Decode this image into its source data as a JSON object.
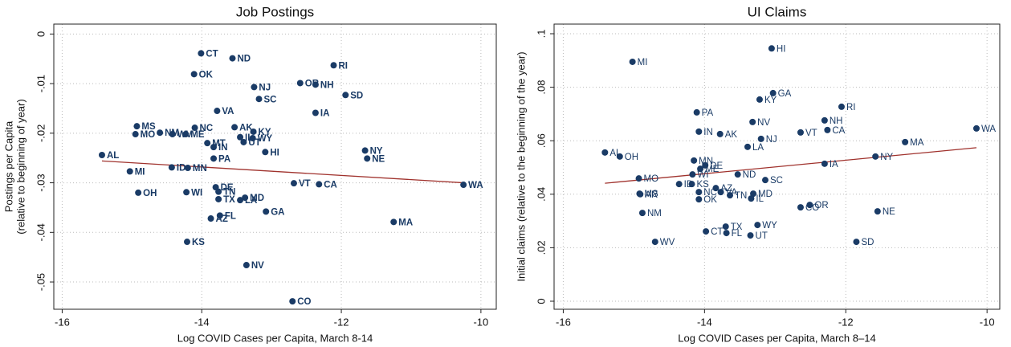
{
  "chart_data": [
    {
      "type": "scatter",
      "title": "Job Postings",
      "xlabel": "Log COVID Cases per Capita, March 8-14",
      "ylabel": [
        "Postings per Capita",
        "(relative to beginning of year)"
      ],
      "color": "#1a3b66",
      "grid": true,
      "xlim": [
        -16.12,
        -9.78
      ],
      "ylim": [
        -0.0555,
        0.002
      ],
      "xticks": [
        -16,
        -14,
        -12,
        -10
      ],
      "yticks": [
        0,
        {
          "value": -0.01,
          "label": "-.01"
        },
        {
          "value": -0.02,
          "label": "-.02"
        },
        {
          "value": -0.03,
          "label": "-.03"
        },
        {
          "value": -0.04,
          "label": "-.04"
        },
        {
          "value": -0.05,
          "label": "-.05"
        }
      ],
      "labels": [
        "CT",
        "ND",
        "RI",
        "OK",
        "NJ",
        "OR",
        "NH",
        "SD",
        "SC",
        "VA",
        "IA",
        "MS",
        "NC",
        "AK",
        "MO",
        "NM",
        "WV",
        "ME",
        "KY",
        "IL",
        "WY",
        "UT",
        "MT",
        "IN",
        "HI",
        "NY",
        "AL",
        "PA",
        "NE",
        "MI",
        "ID",
        "MN",
        "WA",
        "VT",
        "CA",
        "DE",
        "OH",
        "WI",
        "TN",
        "MD",
        "LA",
        "TX",
        "FL",
        "AZ",
        "GA",
        "MA",
        "KS",
        "NV",
        "CO"
      ],
      "x": [
        -14.01,
        -13.56,
        -12.11,
        -14.11,
        -13.25,
        -12.59,
        -12.37,
        -11.94,
        -13.18,
        -13.78,
        -12.37,
        -14.93,
        -14.1,
        -13.53,
        -14.95,
        -14.6,
        -14.42,
        -14.23,
        -13.26,
        -13.45,
        -13.27,
        -13.4,
        -13.92,
        -13.83,
        -13.09,
        -11.66,
        -15.43,
        -13.83,
        -11.63,
        -15.03,
        -14.43,
        -14.2,
        -10.25,
        -12.68,
        -12.32,
        -13.8,
        -14.91,
        -14.22,
        -13.76,
        -13.38,
        -13.45,
        -13.76,
        -13.74,
        -13.87,
        -13.08,
        -11.25,
        -14.21,
        -13.36,
        -12.7
      ],
      "values": [
        -0.0039,
        -0.0049,
        -0.0063,
        -0.0081,
        -0.0107,
        -0.0099,
        -0.0102,
        -0.0123,
        -0.0131,
        -0.0155,
        -0.0159,
        -0.0186,
        -0.0189,
        -0.0188,
        -0.0202,
        -0.0199,
        -0.0202,
        -0.0202,
        -0.0197,
        -0.0208,
        -0.021,
        -0.0218,
        -0.022,
        -0.0228,
        -0.0238,
        -0.0235,
        -0.0244,
        -0.0251,
        -0.0251,
        -0.0277,
        -0.0269,
        -0.027,
        -0.0304,
        -0.0301,
        -0.0303,
        -0.0309,
        -0.032,
        -0.0319,
        -0.0318,
        -0.033,
        -0.0335,
        -0.0333,
        -0.0366,
        -0.0372,
        -0.0358,
        -0.0379,
        -0.0419,
        -0.0466,
        -0.0539
      ],
      "fit": {
        "color": "#a0322d",
        "x": [
          -15.43,
          -10.25
        ],
        "values": [
          -0.0256,
          -0.03
        ]
      }
    },
    {
      "type": "scatter",
      "title": "UI Claims",
      "xlabel": "Log COVID Cases per Capita, March 8–14",
      "ylabel": [
        "Initial claims (relative to the beginning of the year)"
      ],
      "color": "#1a3b66",
      "grid": true,
      "xlim": [
        -16.13,
        -9.82
      ],
      "ylim": [
        -0.003,
        0.1036
      ],
      "xticks": [
        -16,
        -14,
        -12,
        -10
      ],
      "yticks": [
        0,
        {
          "value": 0.02,
          "label": ".02"
        },
        {
          "value": 0.04,
          "label": ".04"
        },
        {
          "value": 0.06,
          "label": ".06"
        },
        {
          "value": 0.08,
          "label": ".08"
        },
        {
          "value": 0.1,
          "label": ".1"
        }
      ],
      "labels": [
        "HI",
        "MI",
        "GA",
        "KY",
        "RI",
        "PA",
        "NV",
        "NH",
        "CA",
        "VT",
        "WA",
        "NJ",
        "MA",
        "LA",
        "IN",
        "AK",
        "OH",
        "AL",
        "NY",
        "MN",
        "DE",
        "ME",
        "IA",
        "WI",
        "ND",
        "SC",
        "MO",
        "KS",
        "ID",
        "AZ",
        "MS",
        "AR",
        "NC",
        "VA",
        "TN",
        "MD",
        "IL",
        "OK",
        "OR",
        "CO",
        "NE",
        "NM",
        "WY",
        "TX",
        "CT",
        "FL",
        "UT",
        "WV",
        "SD"
      ],
      "x": [
        -13.05,
        -15.02,
        -13.03,
        -13.22,
        -12.06,
        -14.11,
        -13.32,
        -12.3,
        -12.26,
        -12.64,
        -10.15,
        -13.2,
        -11.16,
        -13.39,
        -14.08,
        -13.78,
        -15.2,
        -15.41,
        -11.58,
        -14.15,
        -13.99,
        -14.06,
        -12.3,
        -14.17,
        -13.53,
        -13.14,
        -14.93,
        -14.18,
        -14.36,
        -13.84,
        -14.92,
        -14.91,
        -14.08,
        -13.77,
        -13.64,
        -13.31,
        -13.34,
        -14.08,
        -12.51,
        -12.64,
        -11.55,
        -14.88,
        -13.25,
        -13.7,
        -13.98,
        -13.69,
        -13.35,
        -14.7,
        -11.85
      ],
      "values": [
        0.0945,
        0.0895,
        0.0778,
        0.0754,
        0.0727,
        0.0706,
        0.067,
        0.0676,
        0.064,
        0.0631,
        0.0646,
        0.0607,
        0.0595,
        0.0577,
        0.0634,
        0.0625,
        0.0541,
        0.0556,
        0.0541,
        0.0526,
        0.0508,
        0.0495,
        0.0514,
        0.0474,
        0.0474,
        0.0453,
        0.0459,
        0.0438,
        0.0438,
        0.0423,
        0.0402,
        0.04,
        0.0408,
        0.0408,
        0.0396,
        0.0402,
        0.0384,
        0.0381,
        0.036,
        0.0351,
        0.0336,
        0.033,
        0.0285,
        0.0279,
        0.0261,
        0.0255,
        0.0246,
        0.0222,
        0.0222
      ],
      "fit": {
        "color": "#a0322d",
        "x": [
          -15.41,
          -10.15
        ],
        "values": [
          0.0441,
          0.0574
        ]
      }
    }
  ]
}
